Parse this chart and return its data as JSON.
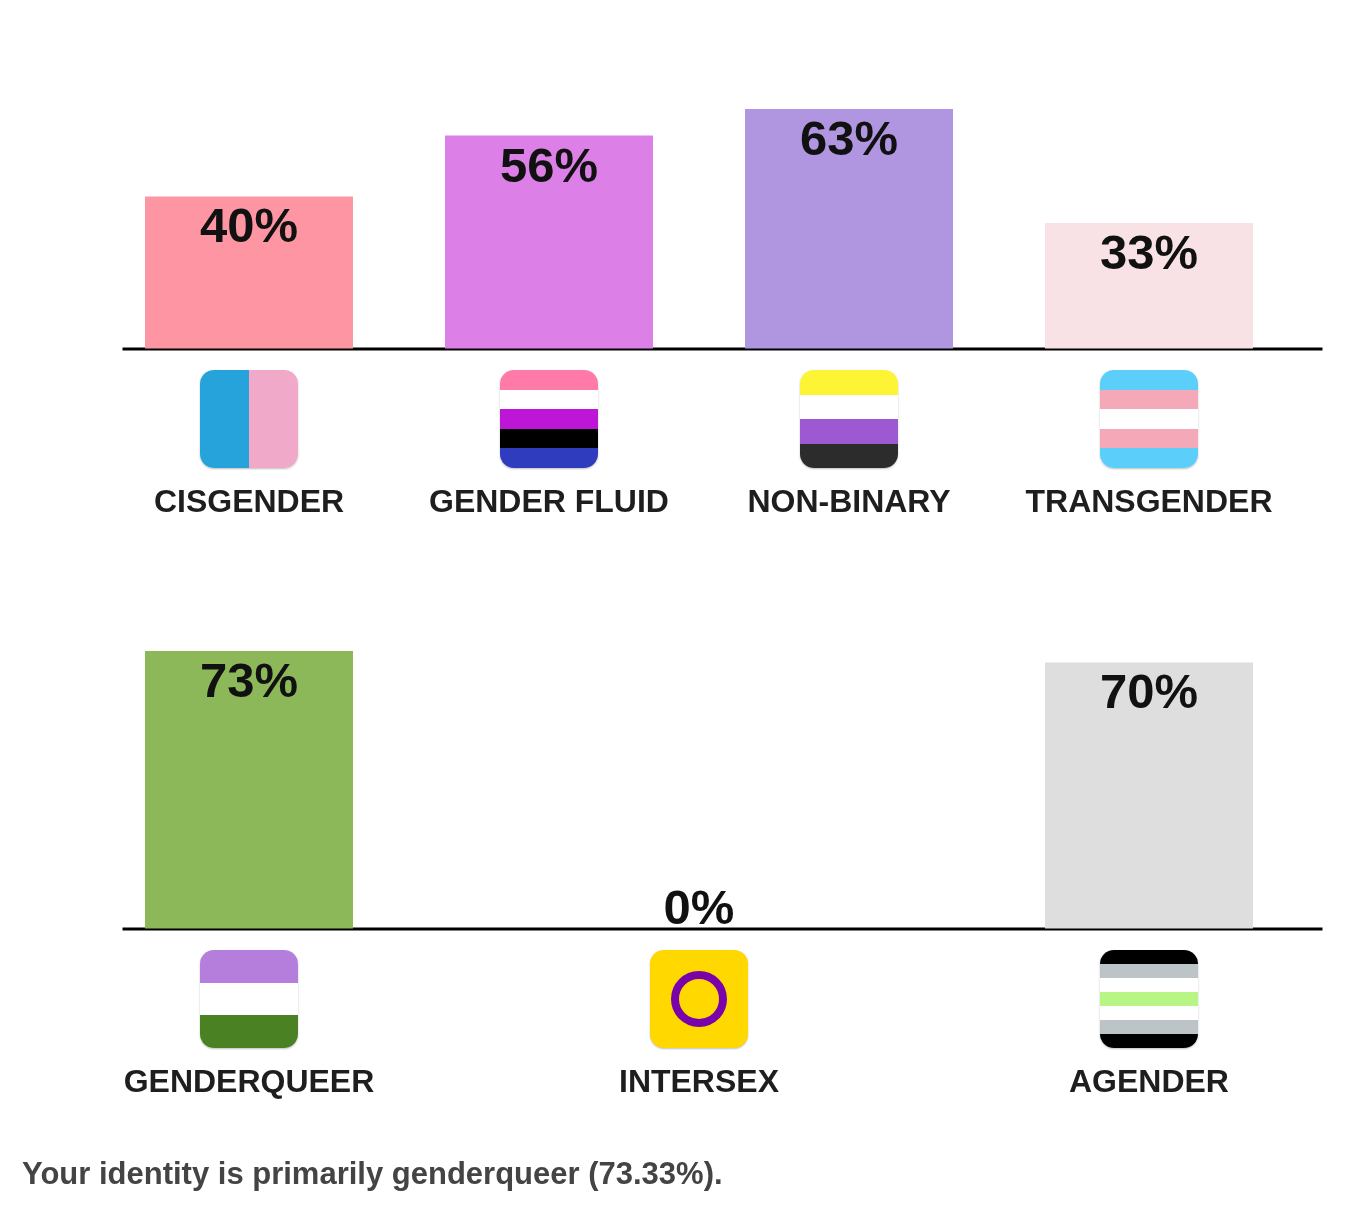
{
  "chart_data": [
    {
      "type": "bar",
      "categories": [
        "CISGENDER",
        "GENDER FLUID",
        "NON-BINARY",
        "TRANSGENDER"
      ],
      "values": [
        40,
        56,
        63,
        33
      ],
      "colors": [
        "#fd96a2",
        "#dc80e8",
        "#b096e0",
        "#f8e2e6"
      ],
      "value_labels": [
        "40%",
        "56%",
        "63%",
        "33%"
      ],
      "tick_labels": "x"
    },
    {
      "type": "bar",
      "categories": [
        "GENDERQUEER",
        "INTERSEX",
        "AGENDER"
      ],
      "values": [
        73,
        0,
        70
      ],
      "colors": [
        "#8cb85a",
        null,
        "#dedede"
      ],
      "value_labels": [
        "73%",
        "0%",
        "70%"
      ],
      "tick_labels": "x",
      "annotations": [
        "Your identity is primarily genderqueer (73.33%)."
      ]
    }
  ]
}
